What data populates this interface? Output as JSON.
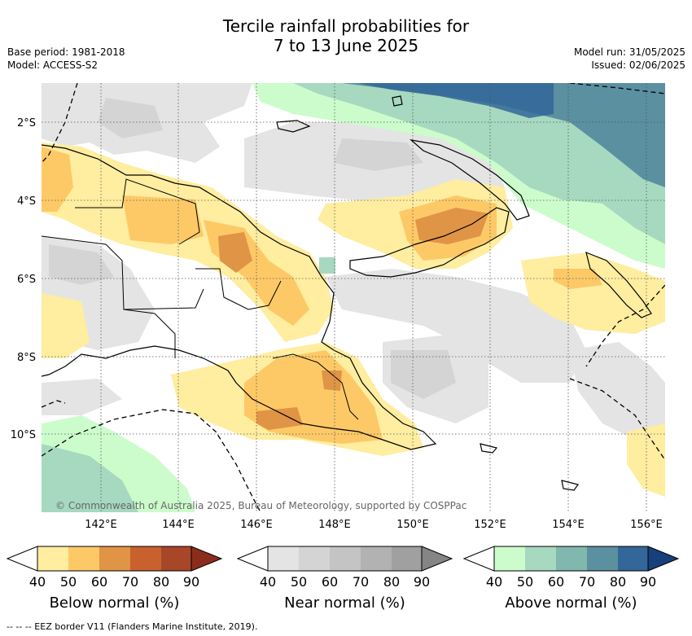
{
  "title_line1": "Tercile rainfall probabilities for",
  "title_line2": "7 to 13 June 2025",
  "base_period": "Base period: 1981-2018",
  "model": "Model: ACCESS-S2",
  "model_run": "Model run: 31/05/2025",
  "issued": "Issued: 02/06/2025",
  "lat_labels": [
    "2°S",
    "4°S",
    "6°S",
    "8°S",
    "10°S"
  ],
  "lon_labels": [
    "142°E",
    "144°E",
    "146°E",
    "148°E",
    "150°E",
    "152°E",
    "154°E",
    "156°E"
  ],
  "copyright": "© Commonwealth of Australia 2025, Bureau of Meteorology, supported by COSPPac",
  "colorbars": [
    {
      "title": "Below normal (%)",
      "ticks": [
        "40",
        "50",
        "60",
        "70",
        "80",
        "90"
      ],
      "colors": [
        "#ffeda0",
        "#fdc967",
        "#e09445",
        "#c8612e",
        "#a8462a",
        "#8c2d1c"
      ]
    },
    {
      "title": "Near normal (%)",
      "ticks": [
        "40",
        "50",
        "60",
        "70",
        "80",
        "90"
      ],
      "colors": [
        "#e4e4e4",
        "#d4d4d4",
        "#c4c4c4",
        "#b2b2b2",
        "#a0a0a0",
        "#858585"
      ]
    },
    {
      "title": "Above normal (%)",
      "ticks": [
        "40",
        "50",
        "60",
        "70",
        "80",
        "90"
      ],
      "colors": [
        "#ccfccc",
        "#a6d9bf",
        "#80b7ae",
        "#5a90a0",
        "#336699",
        "#173f7a"
      ]
    }
  ],
  "footer": "--  --  -- EEZ border V11 (Flanders Marine Institute, 2019)."
}
